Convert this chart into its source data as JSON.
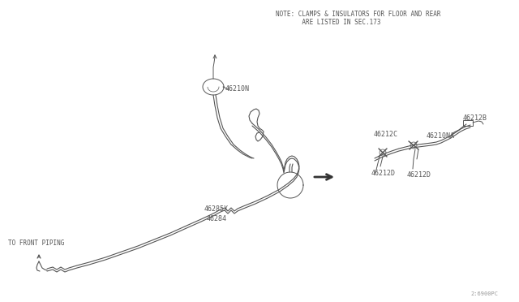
{
  "bg_color": "#ffffff",
  "line_color": "#555555",
  "text_color": "#555555",
  "note_text_line1": "NOTE: CLAMPS & INSULATORS FOR FLOOR AND REAR",
  "note_text_line2": "       ARE LISTED IN SEC.173",
  "watermark": "2:6900PC",
  "figsize": [
    6.4,
    3.72
  ],
  "dpi": 100
}
